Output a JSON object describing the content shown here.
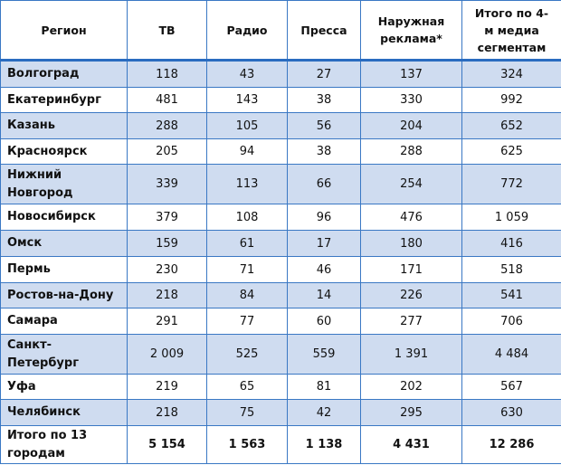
{
  "headers": [
    "Регион",
    "ТВ",
    "Радио",
    "Пресса",
    "Наружная реклама*",
    "Итого по 4-м медиа сегментам"
  ],
  "rows": [
    {
      "region": "Волгоград",
      "values": [
        "118",
        "43",
        "27",
        "137",
        "324"
      ]
    },
    {
      "region": "Екатеринбург",
      "values": [
        "481",
        "143",
        "38",
        "330",
        "992"
      ]
    },
    {
      "region": "Казань",
      "values": [
        "288",
        "105",
        "56",
        "204",
        "652"
      ]
    },
    {
      "region": "Красноярск",
      "values": [
        "205",
        "94",
        "38",
        "288",
        "625"
      ]
    },
    {
      "region": "Нижний Новгород",
      "values": [
        "339",
        "113",
        "66",
        "254",
        "772"
      ]
    },
    {
      "region": "Новосибирск",
      "values": [
        "379",
        "108",
        "96",
        "476",
        "1 059"
      ]
    },
    {
      "region": "Омск",
      "values": [
        "159",
        "61",
        "17",
        "180",
        "416"
      ]
    },
    {
      "region": "Пермь",
      "values": [
        "230",
        "71",
        "46",
        "171",
        "518"
      ]
    },
    {
      "region": "Ростов-на-Дону",
      "values": [
        "218",
        "84",
        "14",
        "226",
        "541"
      ]
    },
    {
      "region": "Самара",
      "values": [
        "291",
        "77",
        "60",
        "277",
        "706"
      ]
    },
    {
      "region": "Санкт-Петербург",
      "values": [
        "2 009",
        "525",
        "559",
        "1 391",
        "4 484"
      ]
    },
    {
      "region": "Уфа",
      "values": [
        "219",
        "65",
        "81",
        "202",
        "567"
      ]
    },
    {
      "region": "Челябинск",
      "values": [
        "218",
        "75",
        "42",
        "295",
        "630"
      ]
    }
  ],
  "total": {
    "region": "Итого по 13 городам",
    "values": [
      "5 154",
      "1 563",
      "1 138",
      "4 431",
      "12 286"
    ]
  },
  "colors": {
    "border": "#3a78c4",
    "alt_row": "#cfdcf0"
  }
}
